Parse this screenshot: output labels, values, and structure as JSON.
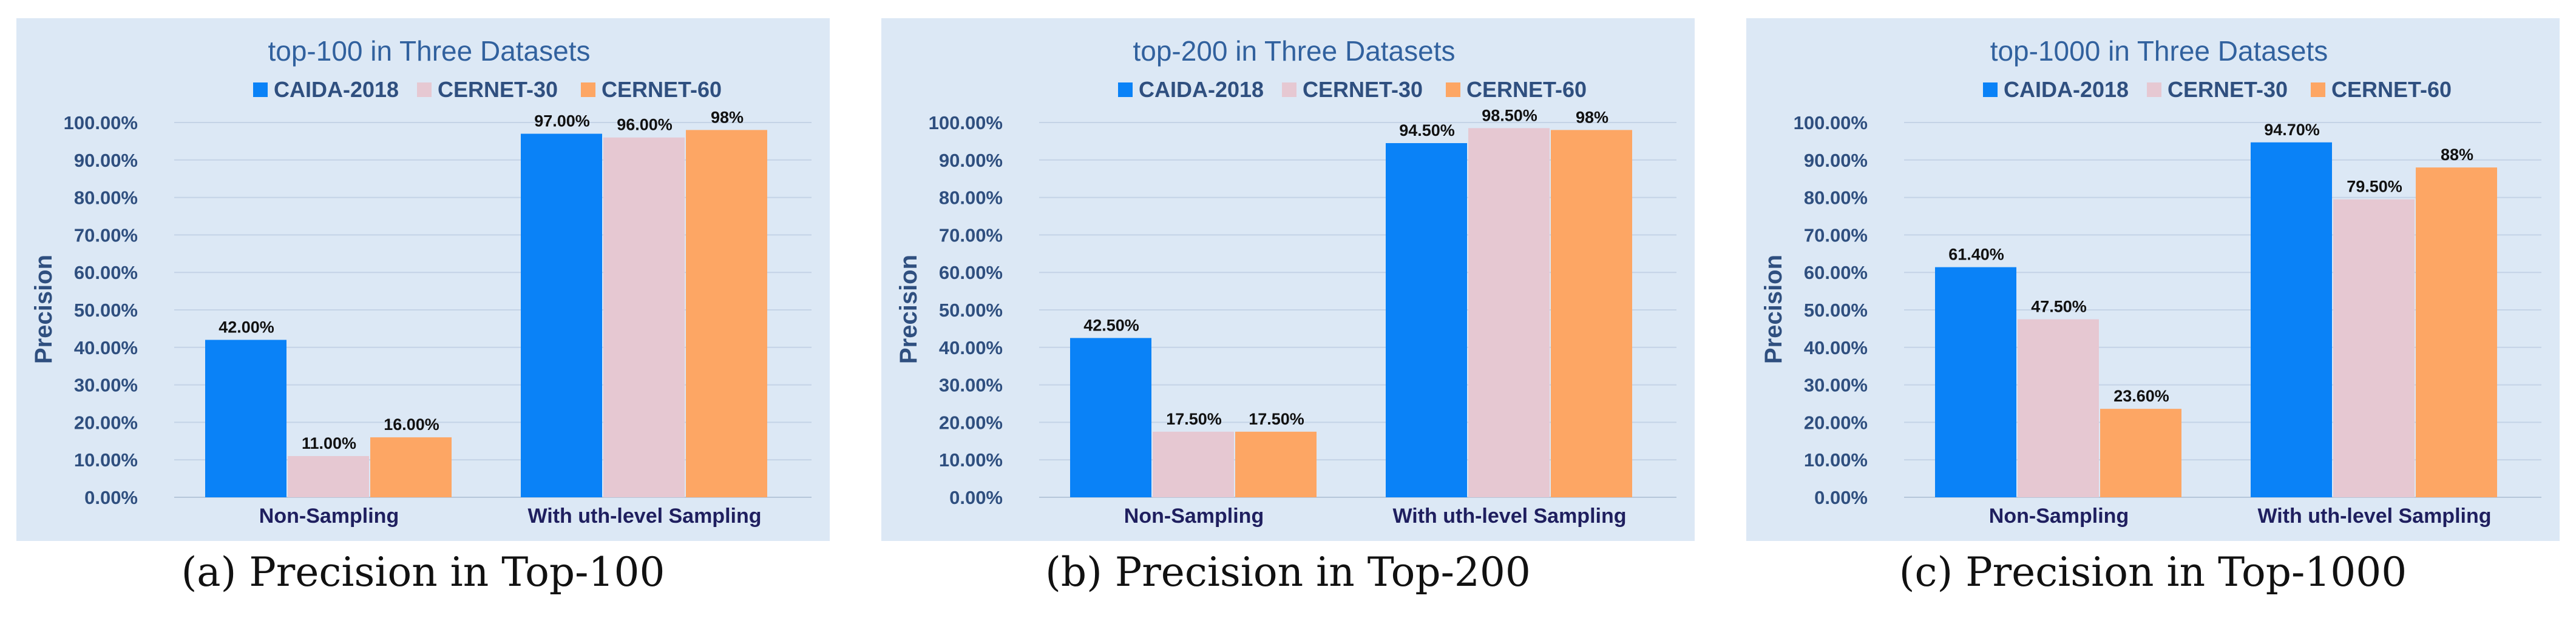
{
  "colors": {
    "background": "#dce8f5",
    "CAIDA-2018": "#0a82f7",
    "CERNET-30": "#e6c8d2",
    "CERNET-60": "#fda664"
  },
  "chart_data": [
    {
      "type": "bar",
      "title": "top-100 in Three Datasets",
      "caption": "(a) Precision in Top-100",
      "xlabel": "",
      "ylabel": "Precision",
      "categories": [
        "Non-Sampling",
        "With uth-level Sampling"
      ],
      "yticks": [
        "0.00%",
        "10.00%",
        "20.00%",
        "30.00%",
        "40.00%",
        "50.00%",
        "60.00%",
        "70.00%",
        "80.00%",
        "90.00%",
        "100.00%"
      ],
      "ylim": [
        0,
        100
      ],
      "legend": "top",
      "series": [
        {
          "name": "CAIDA-2018",
          "values": [
            42.0,
            97.0
          ],
          "labels": [
            "42.00%",
            "97.00%"
          ]
        },
        {
          "name": "CERNET-30",
          "values": [
            11.0,
            96.0
          ],
          "labels": [
            "11.00%",
            "96.00%"
          ]
        },
        {
          "name": "CERNET-60",
          "values": [
            16.0,
            98.0
          ],
          "labels": [
            "16.00%",
            "98%"
          ]
        }
      ]
    },
    {
      "type": "bar",
      "title": "top-200 in Three Datasets",
      "caption": "(b) Precision in Top-200",
      "xlabel": "",
      "ylabel": "Precision",
      "categories": [
        "Non-Sampling",
        "With uth-level Sampling"
      ],
      "yticks": [
        "0.00%",
        "10.00%",
        "20.00%",
        "30.00%",
        "40.00%",
        "50.00%",
        "60.00%",
        "70.00%",
        "80.00%",
        "90.00%",
        "100.00%"
      ],
      "ylim": [
        0,
        100
      ],
      "legend": "top",
      "series": [
        {
          "name": "CAIDA-2018",
          "values": [
            42.5,
            94.5
          ],
          "labels": [
            "42.50%",
            "94.50%"
          ]
        },
        {
          "name": "CERNET-30",
          "values": [
            17.5,
            98.5
          ],
          "labels": [
            "17.50%",
            "98.50%"
          ]
        },
        {
          "name": "CERNET-60",
          "values": [
            17.5,
            98.0
          ],
          "labels": [
            "17.50%",
            "98%"
          ]
        }
      ]
    },
    {
      "type": "bar",
      "title": "top-1000 in Three Datasets",
      "caption": "(c) Precision in Top-1000",
      "xlabel": "",
      "ylabel": "Precision",
      "categories": [
        "Non-Sampling",
        "With uth-level Sampling"
      ],
      "yticks": [
        "0.00%",
        "10.00%",
        "20.00%",
        "30.00%",
        "40.00%",
        "50.00%",
        "60.00%",
        "70.00%",
        "80.00%",
        "90.00%",
        "100.00%"
      ],
      "ylim": [
        0,
        100
      ],
      "legend": "top",
      "series": [
        {
          "name": "CAIDA-2018",
          "values": [
            61.4,
            94.7
          ],
          "labels": [
            "61.40%",
            "94.70%"
          ]
        },
        {
          "name": "CERNET-30",
          "values": [
            47.5,
            79.5
          ],
          "labels": [
            "47.50%",
            "79.50%"
          ]
        },
        {
          "name": "CERNET-60",
          "values": [
            23.6,
            88.0
          ],
          "labels": [
            "23.60%",
            "88%"
          ]
        }
      ]
    }
  ]
}
